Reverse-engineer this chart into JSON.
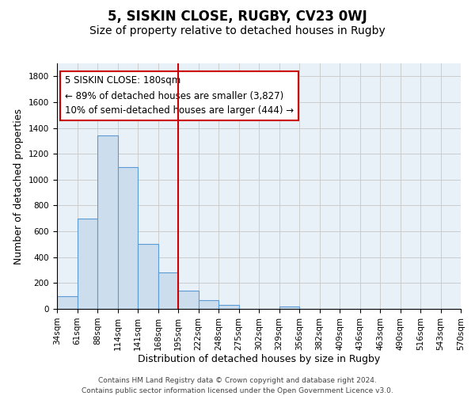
{
  "title": "5, SISKIN CLOSE, RUGBY, CV23 0WJ",
  "subtitle": "Size of property relative to detached houses in Rugby",
  "xlabel": "Distribution of detached houses by size in Rugby",
  "ylabel": "Number of detached properties",
  "footer_lines": [
    "Contains HM Land Registry data © Crown copyright and database right 2024.",
    "Contains public sector information licensed under the Open Government Licence v3.0."
  ],
  "bin_labels": [
    "34sqm",
    "61sqm",
    "88sqm",
    "114sqm",
    "141sqm",
    "168sqm",
    "195sqm",
    "222sqm",
    "248sqm",
    "275sqm",
    "302sqm",
    "329sqm",
    "356sqm",
    "382sqm",
    "409sqm",
    "436sqm",
    "463sqm",
    "490sqm",
    "516sqm",
    "543sqm",
    "570sqm"
  ],
  "bar_values": [
    100,
    700,
    1340,
    1100,
    500,
    280,
    140,
    70,
    30,
    0,
    0,
    20,
    0,
    0,
    0,
    0,
    0,
    0,
    0,
    0
  ],
  "bar_color": "#ccdded",
  "bar_edge_color": "#5b9bd5",
  "vline_x": 6,
  "vline_color": "#cc0000",
  "annotation_line1": "5 SISKIN CLOSE: 180sqm",
  "annotation_line2": "← 89% of detached houses are smaller (3,827)",
  "annotation_line3": "10% of semi-detached houses are larger (444) →",
  "ylim": [
    0,
    1900
  ],
  "yticks": [
    0,
    200,
    400,
    600,
    800,
    1000,
    1200,
    1400,
    1600,
    1800
  ],
  "grid_color": "#cccccc",
  "background_color": "#e8f0f8",
  "title_fontsize": 12,
  "subtitle_fontsize": 10,
  "axis_label_fontsize": 9,
  "tick_fontsize": 7.5,
  "annotation_fontsize": 8.5,
  "footer_fontsize": 6.5
}
